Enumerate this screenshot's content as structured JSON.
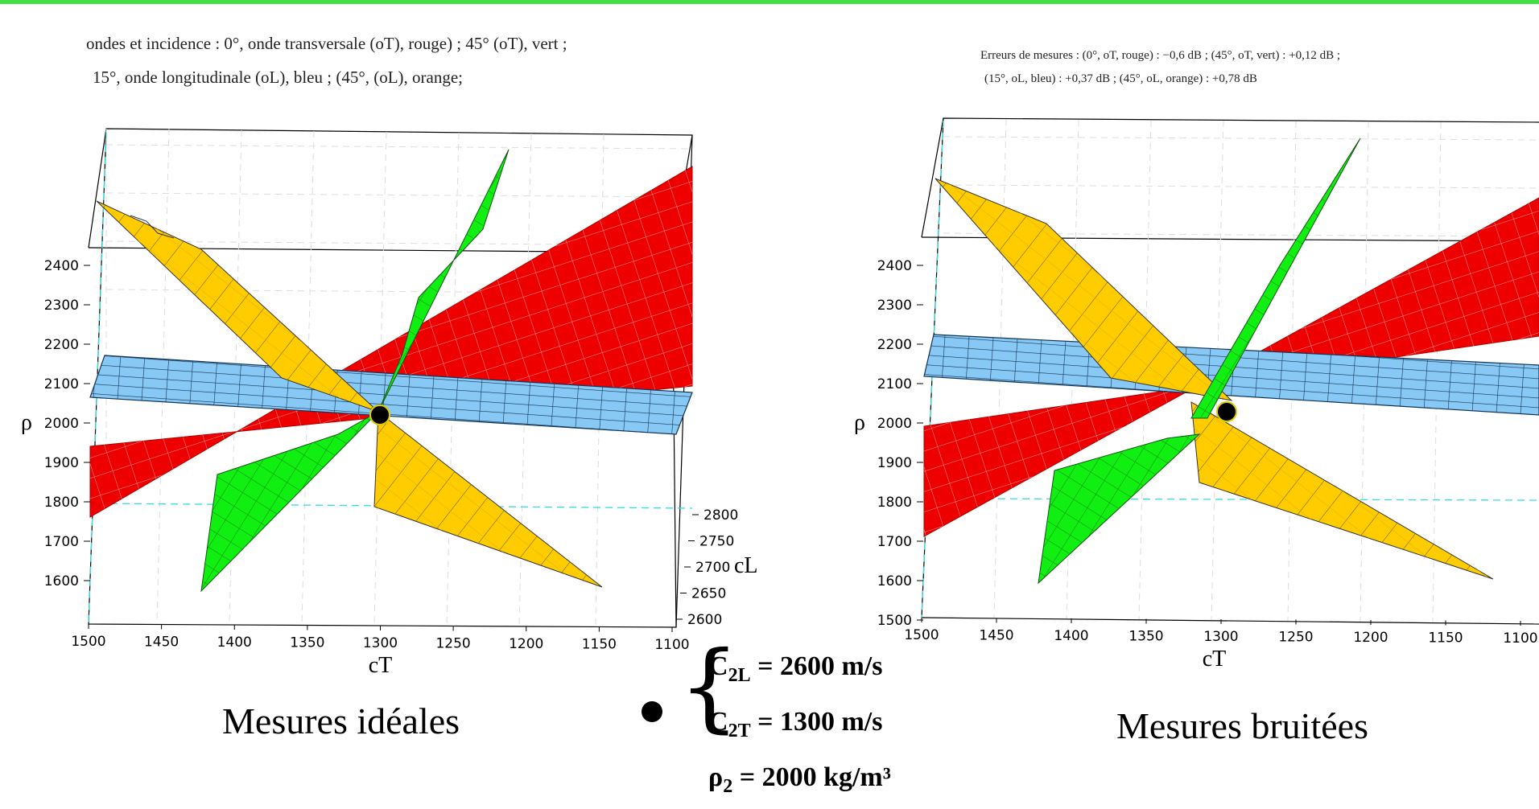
{
  "notes": {
    "left_line1": "ondes et incidence  :  0°, onde transversale (oT), rouge) ; 45° (oT), vert ;",
    "left_line2": "15°, onde longitudinale (oL), bleu ; (45°, (oL), orange;",
    "right_line1": "Erreurs de mesures  : (0°, oT, rouge)  :  −0,6 dB ; (45°, oT, vert)  :  +0,12 dB ;",
    "right_line2": "(15°, oL, bleu)  :  +0,37 dB ; (45°, oL, orange)  :  +0,78 dB"
  },
  "captions": {
    "left": "Mesures idéales",
    "right": "Mesures bruitées"
  },
  "solution": {
    "c2l_sym": "C",
    "c2l_sub": "2L",
    "c2l_val": " = 2600 m/s",
    "c2t_sym": "C",
    "c2t_sub": "2T",
    "c2t_val": " = 1300 m/s",
    "rho_sym": "ρ",
    "rho_sub": "2",
    "rho_val": " = 2000 kg/m³"
  },
  "colors": {
    "red_surface": "#ee0000",
    "green_surface": "#11ee11",
    "blue_surface": "#88c8f4",
    "orange_surface": "#ffcc00",
    "title_bar": "#44dd44"
  },
  "chart_data": [
    {
      "type": "3d-surface",
      "xlabel": "cT",
      "ylabel": "ρ",
      "zlabel": "cL",
      "x_ticks": [
        "1500",
        "1450",
        "1400",
        "1350",
        "1300",
        "1250",
        "1200",
        "1150",
        "1100"
      ],
      "y_ticks": [
        "2400",
        "2300",
        "2200",
        "2100",
        "2000",
        "1900",
        "1800",
        "1700",
        "1600"
      ],
      "z_ticks": [
        "2800",
        "2750",
        "2700",
        "2650",
        "2600"
      ],
      "xlim": [
        1100,
        1500
      ],
      "ylim": [
        1500,
        2450
      ],
      "zlim": [
        2600,
        2800
      ],
      "series": [
        {
          "name": "0°, oT, rouge",
          "color": "red"
        },
        {
          "name": "45°, oT, vert",
          "color": "green"
        },
        {
          "name": "15°, oL, bleu",
          "color": "blue"
        },
        {
          "name": "45°, oL, orange",
          "color": "orange"
        }
      ],
      "intersection": {
        "cT": 1300,
        "rho": 2000,
        "cL": 2600
      }
    },
    {
      "type": "3d-surface",
      "xlabel": "cT",
      "ylabel": "ρ",
      "x_ticks": [
        "1500",
        "1450",
        "1400",
        "1350",
        "1300",
        "1250",
        "1200",
        "1150",
        "1100"
      ],
      "y_ticks": [
        "2400",
        "2300",
        "2200",
        "2100",
        "2000",
        "1900",
        "1800",
        "1700",
        "1600",
        "1500"
      ],
      "xlim": [
        1100,
        1500
      ],
      "ylim": [
        1500,
        2450
      ],
      "series": [
        {
          "name": "0°, oT, rouge",
          "color": "red",
          "error_db": -0.6
        },
        {
          "name": "45°, oT, vert",
          "color": "green",
          "error_db": 0.12
        },
        {
          "name": "15°, oL, bleu",
          "color": "blue",
          "error_db": 0.37
        },
        {
          "name": "45°, oL, orange",
          "color": "orange",
          "error_db": 0.78
        }
      ],
      "intersection": {
        "cT": 1300,
        "rho": 2000
      }
    }
  ]
}
